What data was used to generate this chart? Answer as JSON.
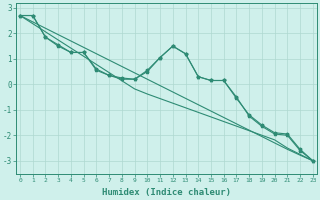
{
  "xlabel": "Humidex (Indice chaleur)",
  "x": [
    0,
    1,
    2,
    3,
    4,
    5,
    6,
    7,
    8,
    9,
    10,
    11,
    12,
    13,
    14,
    15,
    16,
    17,
    18,
    19,
    20,
    21,
    22,
    23
  ],
  "line1": [
    2.7,
    2.7,
    1.85,
    1.55,
    1.25,
    1.25,
    0.6,
    0.35,
    0.2,
    0.2,
    0.55,
    1.05,
    1.5,
    1.2,
    0.3,
    0.15,
    0.15,
    -0.55,
    -1.2,
    -1.6,
    -1.9,
    -1.95,
    -2.55,
    -3.0
  ],
  "line2": [
    2.7,
    2.7,
    1.85,
    1.5,
    1.25,
    1.25,
    0.55,
    0.35,
    0.25,
    0.2,
    0.5,
    1.05,
    1.5,
    1.2,
    0.3,
    0.15,
    0.15,
    -0.5,
    -1.25,
    -1.65,
    -1.95,
    -2.0,
    -2.6,
    -3.0
  ],
  "line_linear1": [
    2.7,
    2.45,
    2.2,
    1.95,
    1.7,
    1.45,
    1.2,
    0.95,
    0.7,
    0.45,
    0.2,
    -0.05,
    -0.3,
    -0.55,
    -0.8,
    -1.05,
    -1.3,
    -1.55,
    -1.8,
    -2.05,
    -2.3,
    -2.55,
    -2.78,
    -3.0
  ],
  "line_linear2": [
    2.7,
    2.38,
    2.06,
    1.74,
    1.42,
    1.1,
    0.78,
    0.46,
    0.14,
    -0.18,
    -0.38,
    -0.56,
    -0.74,
    -0.92,
    -1.1,
    -1.28,
    -1.46,
    -1.64,
    -1.82,
    -2.0,
    -2.18,
    -2.5,
    -2.75,
    -3.0
  ],
  "line_color": "#2e8b74",
  "bg_color": "#cff0eb",
  "grid_color": "#aed8d0",
  "ylim": [
    -3.5,
    3.2
  ],
  "yticks": [
    -3,
    -2,
    -1,
    0,
    1,
    2,
    3
  ],
  "xlim": [
    -0.3,
    23.3
  ]
}
